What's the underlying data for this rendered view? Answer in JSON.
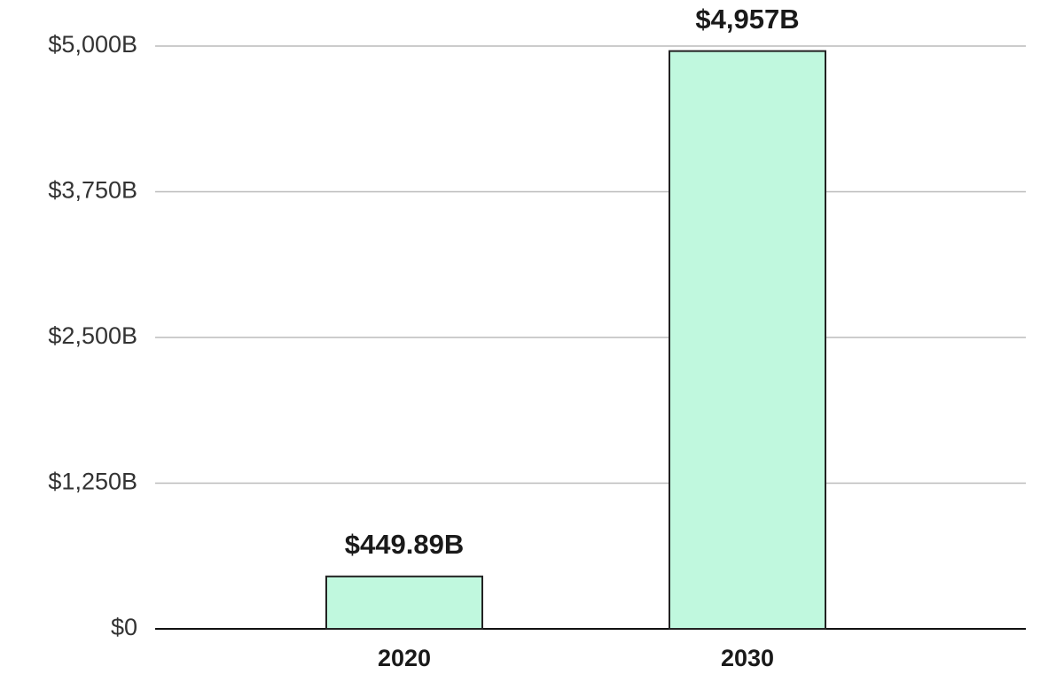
{
  "chart_data": {
    "type": "bar",
    "categories": [
      "2020",
      "2030"
    ],
    "values": [
      449.89,
      4957
    ],
    "value_labels": [
      "$449.89B",
      "$4,957B"
    ],
    "color": "#c0f8de",
    "ylim": [
      0,
      5000
    ],
    "yticks": [
      {
        "value": 0,
        "label": "$0"
      },
      {
        "value": 1250,
        "label": "$1,250B"
      },
      {
        "value": 2500,
        "label": "$2,500B"
      },
      {
        "value": 3750,
        "label": "$3,750B"
      },
      {
        "value": 5000,
        "label": "$5,000B"
      }
    ],
    "grid": true
  }
}
